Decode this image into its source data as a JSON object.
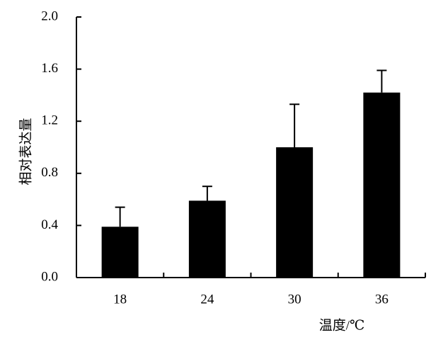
{
  "chart_data": {
    "type": "bar",
    "x_label": "温度/℃",
    "y_label": "相对表达量",
    "categories": [
      "18",
      "24",
      "30",
      "36"
    ],
    "values": [
      0.39,
      0.59,
      1.0,
      1.42
    ],
    "errors": [
      0.15,
      0.11,
      0.33,
      0.17
    ],
    "color": "#000000",
    "ylim": [
      0,
      2.0
    ],
    "yticks": [
      {
        "value": 0,
        "label": "0.0"
      },
      0.4,
      0.8,
      1.2,
      1.6,
      {
        "value": 2.0,
        "label": "2.0"
      }
    ],
    "grid": false
  }
}
